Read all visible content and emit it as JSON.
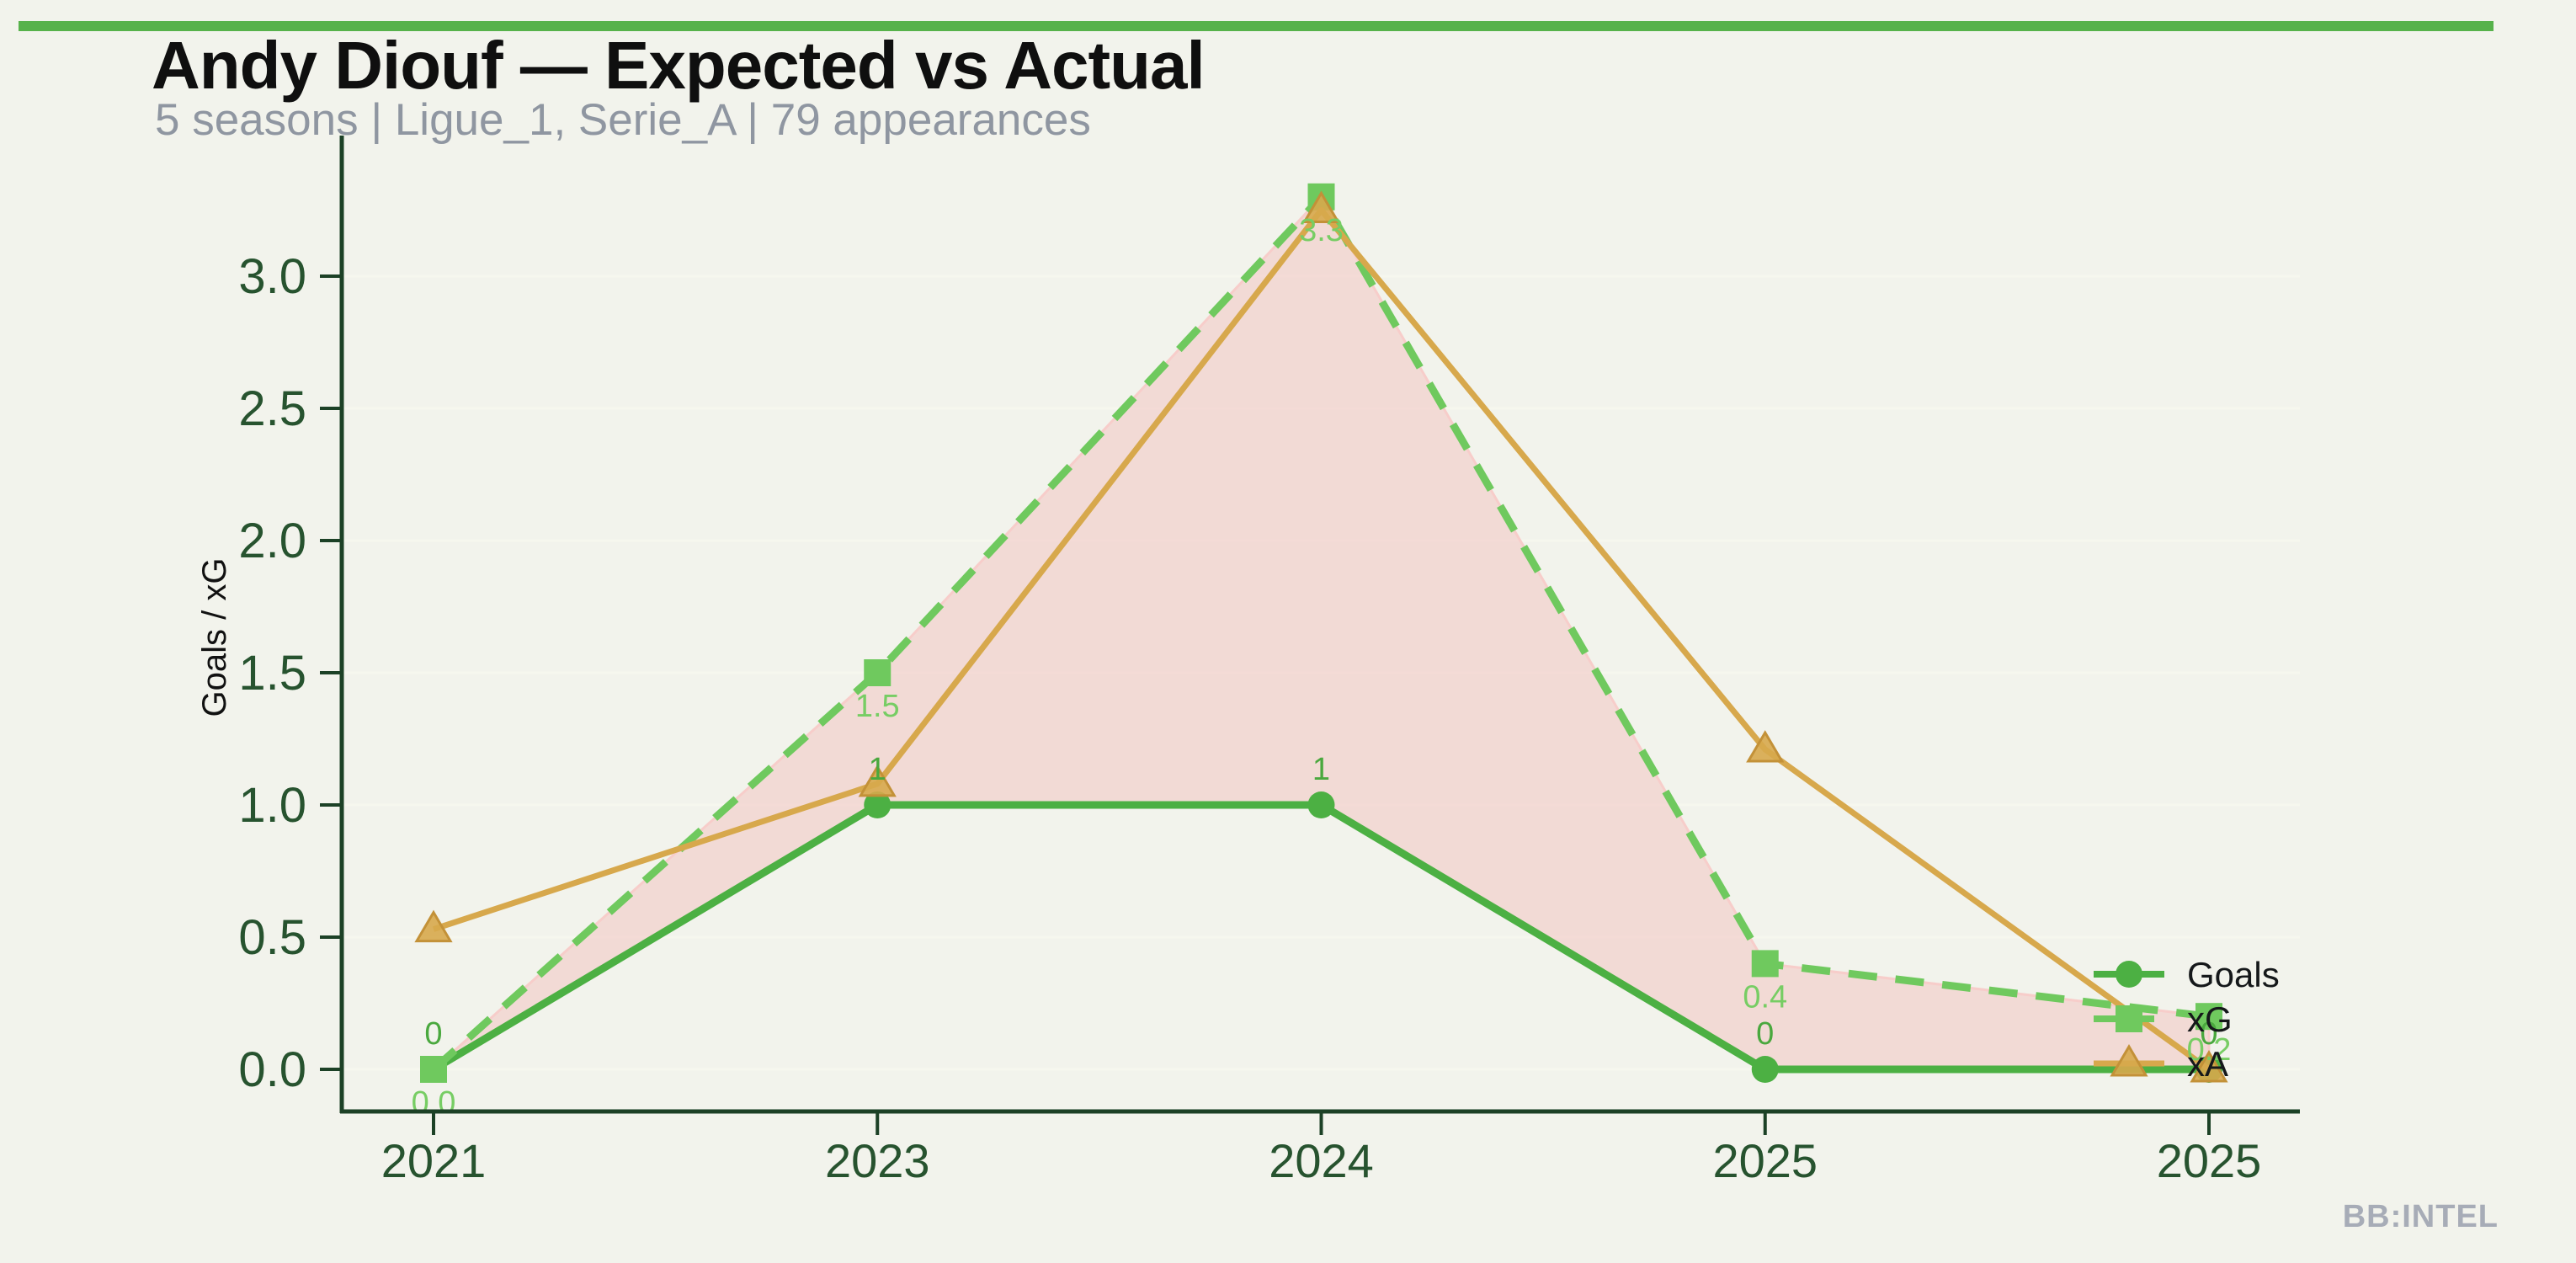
{
  "page": {
    "background": "#f2f3ec",
    "accent_bar_color": "#57b24b",
    "watermark": "BB:INTEL"
  },
  "header": {
    "title": "Andy Diouf — Expected vs Actual",
    "subtitle": "5 seasons | Ligue_1, Serie_A | 79 appearances"
  },
  "chart_data": {
    "type": "line",
    "title": "Andy Diouf — Expected vs Actual",
    "xlabel": "",
    "ylabel": "Goals / xG",
    "categories": [
      "2021",
      "2023",
      "2024",
      "2025",
      "2025"
    ],
    "y_tick_labels": [
      "0.0",
      "0.5",
      "1.0",
      "1.5",
      "2.0",
      "2.5",
      "3.0"
    ],
    "ylim": [
      -0.16,
      3.53
    ],
    "grid": true,
    "legend_position": "lower right inside plot",
    "axis_color": "#1c4126",
    "tick_label_color": "#27532f",
    "gridline_color": "#f6f7ee",
    "series": [
      {
        "name": "Goals",
        "values": [
          0,
          1,
          1,
          0,
          0
        ],
        "point_labels": [
          "0",
          "1",
          "1",
          "0",
          "0"
        ],
        "label_side": "above",
        "color": "#4cb043",
        "label_color": "#4aa83e",
        "line_style": "solid",
        "marker": "circle"
      },
      {
        "name": "xG",
        "values": [
          0.0,
          1.5,
          3.3,
          0.4,
          0.2
        ],
        "point_labels": [
          "0.0",
          "1.5",
          "3.3",
          "0.4",
          "0.2"
        ],
        "label_side": "below",
        "color": "#6fc95e",
        "label_color": "#77cd64",
        "line_style": "dashed",
        "marker": "square"
      },
      {
        "name": "xA",
        "values": [
          0.53,
          1.08,
          3.25,
          1.21,
          0.0
        ],
        "point_labels": [],
        "label_side": "none",
        "color": "#d7a84c",
        "marker_stroke": "#c39138",
        "line_style": "solid",
        "marker": "triangle"
      }
    ],
    "fill_between": {
      "series_a": "Goals",
      "series_b": "xG",
      "color": "#f2c4c2",
      "opacity": 0.55,
      "edge_color": "#f7cdca"
    },
    "legend": [
      "Goals",
      "xG",
      "xA"
    ],
    "legend_text_color": "#15181a"
  }
}
